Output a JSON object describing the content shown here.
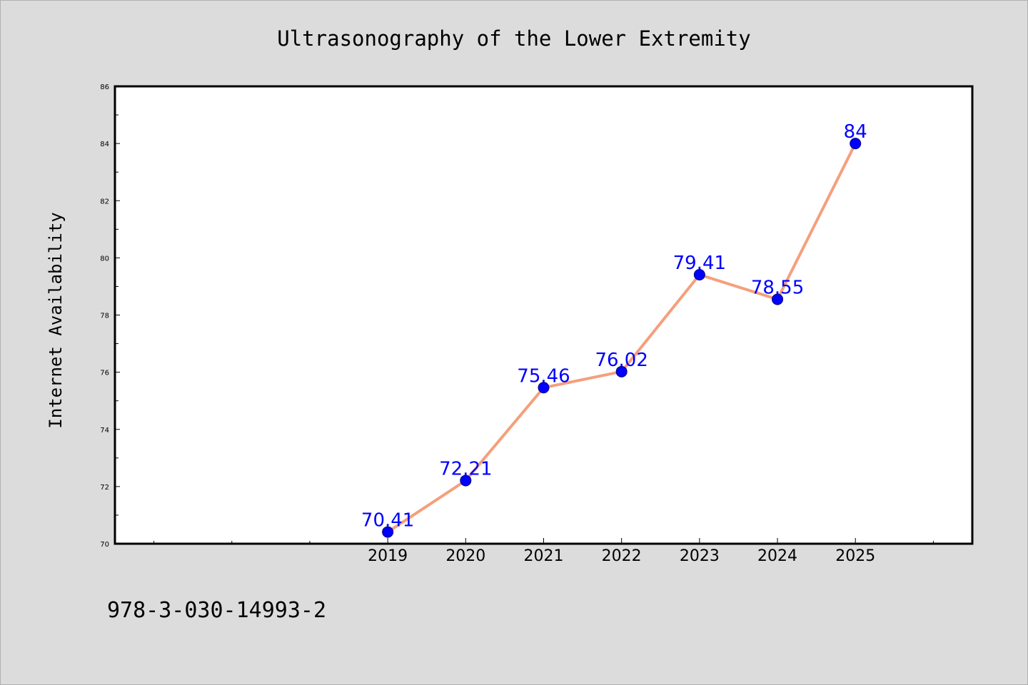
{
  "colors": {
    "background": "#dcdcdc",
    "plot_background": "#ffffff",
    "line": "#f4a07c",
    "marker": "#0000ff",
    "label": "#0000ff",
    "axis": "#000000"
  },
  "footer_text": "978-3-030-14993-2",
  "chart_data": {
    "type": "line",
    "title": "Ultrasonography of the Lower Extremity",
    "xlabel": "",
    "ylabel": "Internet Availability",
    "categories": [
      "2019",
      "2020",
      "2021",
      "2022",
      "2023",
      "2024",
      "2025"
    ],
    "series": [
      {
        "values": [
          70.41,
          72.21,
          75.46,
          76.02,
          79.41,
          78.55,
          84
        ],
        "labels": [
          "70.41",
          "72.21",
          "75.46",
          "76.02",
          "79.41",
          "78.55",
          "84"
        ]
      }
    ],
    "ylim": [
      70,
      86
    ],
    "yticks": [
      70,
      72,
      74,
      76,
      78,
      80,
      82,
      84,
      86
    ],
    "ytick_labels": [
      "70",
      "72",
      "74",
      "76",
      "78",
      "80",
      "82",
      "84",
      "86"
    ],
    "xlim": [
      2015.5,
      2026.5
    ],
    "grid": false,
    "legend": "none"
  }
}
